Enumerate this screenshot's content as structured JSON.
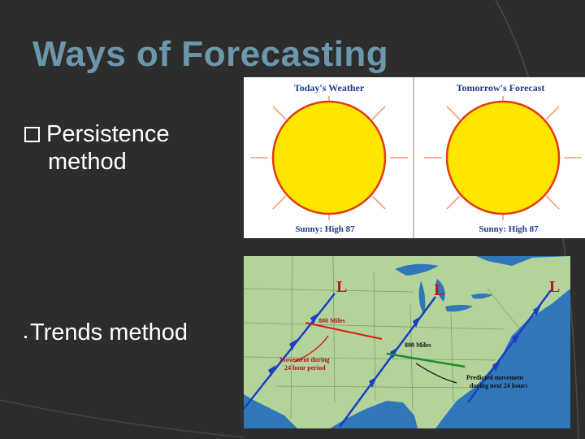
{
  "slide": {
    "title": "Ways of Forecasting",
    "bullets": [
      {
        "line1": "Persistence",
        "line2": "method"
      },
      {
        "line1": "Trends method"
      }
    ]
  },
  "weather_panel": {
    "left_title": "Today's Weather",
    "left_caption": "Sunny: High 87",
    "right_title": "Tomorrow's Forecast",
    "right_caption": "Sunny: High 87"
  },
  "map": {
    "pressure_label": "L",
    "distance_1": "800 Miles",
    "distance_2": "800 Miles",
    "movement_note_1": "Movement during",
    "movement_note_2": "24 hour period",
    "predicted_note_1": "Predicted movement",
    "predicted_note_2": "during next 24 hours"
  },
  "colors": {
    "background": "#2d2d2d",
    "title": "#6c97ab",
    "sun_fill": "#ffe600",
    "sun_outline": "#e23b12",
    "map_land": "#b4d39b",
    "map_water": "#2f77b8",
    "front": "#1b3fc4"
  }
}
